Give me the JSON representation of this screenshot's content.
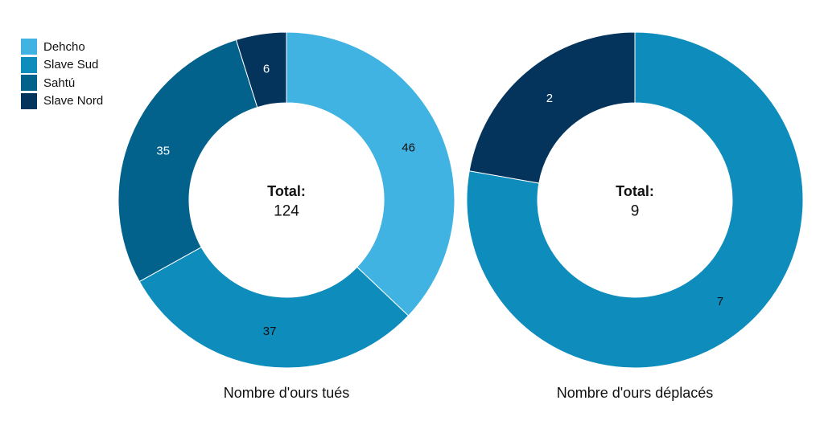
{
  "chart_data": [
    {
      "type": "pie",
      "donut": true,
      "title": "Nombre d'ours tués",
      "center_label": "Total:",
      "center_value": "124",
      "total": 124,
      "slices": [
        {
          "name": "Dehcho",
          "value": 46,
          "label": "46",
          "color": "#41b3e2"
        },
        {
          "name": "Slave Sud",
          "value": 37,
          "label": "37",
          "color": "#0e8dbd"
        },
        {
          "name": "Sahtú",
          "value": 35,
          "label": "35",
          "color": "#03628b"
        },
        {
          "name": "Slave Nord",
          "value": 6,
          "label": "6",
          "color": "#04335b"
        }
      ]
    },
    {
      "type": "pie",
      "donut": true,
      "title": "Nombre d'ours déplacés",
      "center_label": "Total:",
      "center_value": "9",
      "total": 9,
      "slices": [
        {
          "name": "Slave Sud",
          "value": 7,
          "label": "7",
          "color": "#0e8dbd"
        },
        {
          "name": "Slave Nord",
          "value": 2,
          "label": "2",
          "color": "#04335b"
        }
      ]
    }
  ],
  "legend": {
    "placement": "top-left",
    "items": [
      {
        "name": "Dehcho",
        "color": "#41b3e2"
      },
      {
        "name": "Slave Sud",
        "color": "#0e8dbd"
      },
      {
        "name": "Sahtú",
        "color": "#03628b"
      },
      {
        "name": "Slave Nord",
        "color": "#04335b"
      }
    ]
  }
}
